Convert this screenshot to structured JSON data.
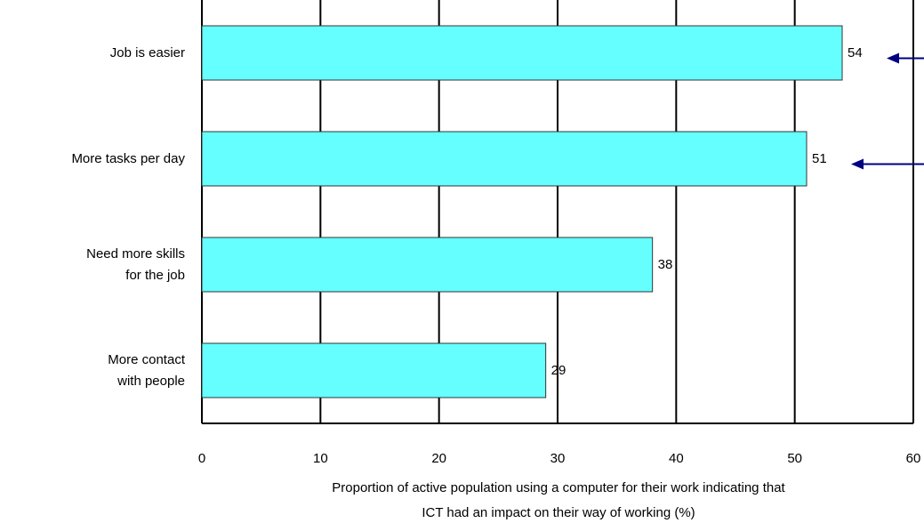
{
  "chart_data": {
    "type": "bar",
    "orientation": "horizontal",
    "categories": [
      [
        "Job is easier"
      ],
      [
        "More tasks per day"
      ],
      [
        "Need more skills",
        "for the job"
      ],
      [
        "More contact",
        "with people"
      ]
    ],
    "values": [
      54,
      51,
      38,
      29
    ],
    "data_labels": [
      "54",
      "51",
      "38",
      "29"
    ],
    "xlim": [
      0,
      60
    ],
    "x_ticks": [
      0,
      10,
      20,
      30,
      40,
      50,
      60
    ],
    "xlabel_lines": [
      "Proportion of active population using a computer for their work indicating that",
      "ICT had an impact on their way of working (%)"
    ],
    "grid": "vertical",
    "arrows_pointing_at": [
      "Job is easier",
      "More tasks per day"
    ],
    "colors": {
      "bar": "#66ffff",
      "bar_stroke": "#333333",
      "axis": "#000000",
      "arrow": "#000080"
    }
  }
}
